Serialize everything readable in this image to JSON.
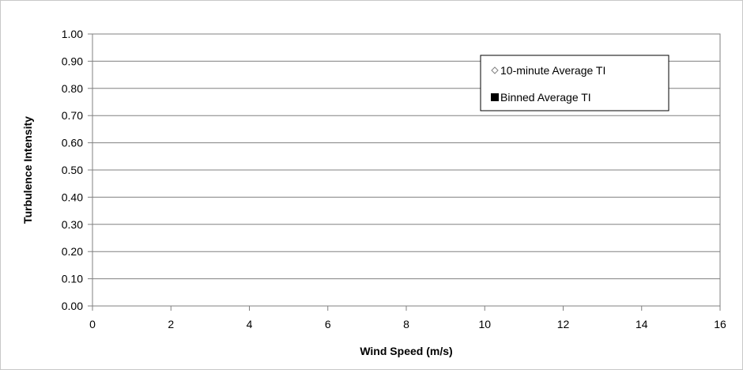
{
  "chart_data": {
    "type": "scatter",
    "title": "",
    "xlabel": "Wind Speed (m/s)",
    "ylabel": "Turbulence Intensity",
    "xlim": [
      0,
      16
    ],
    "ylim": [
      0,
      1.0
    ],
    "x_ticks": [
      "0",
      "2",
      "4",
      "6",
      "8",
      "10",
      "12",
      "14",
      "16"
    ],
    "y_ticks": [
      "0.00",
      "0.10",
      "0.20",
      "0.30",
      "0.40",
      "0.50",
      "0.60",
      "0.70",
      "0.80",
      "0.90",
      "1.00"
    ],
    "grid": true,
    "legend_position": "top-right",
    "series": [
      {
        "name": "10-minute Average TI",
        "marker": "open-diamond",
        "color": "#808080",
        "points": []
      },
      {
        "name": "Binned Average TI",
        "marker": "filled-square",
        "color": "#000000",
        "points": []
      }
    ]
  }
}
